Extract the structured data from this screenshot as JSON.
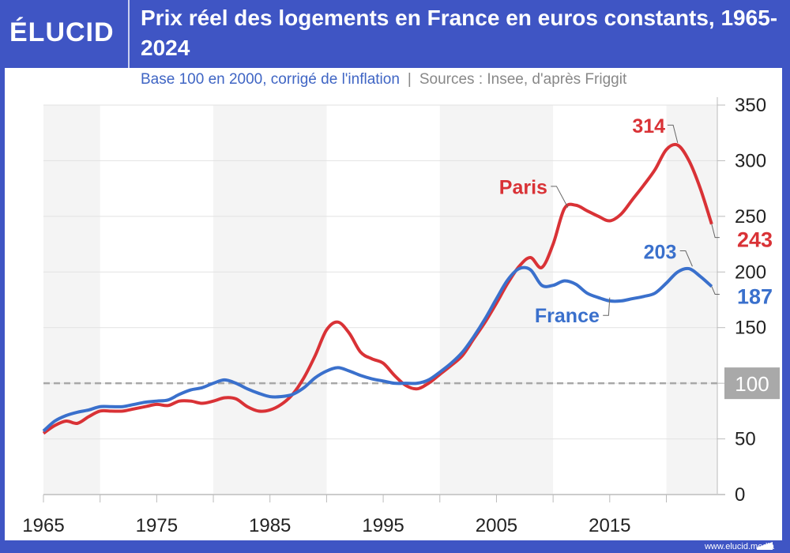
{
  "header": {
    "logo": "ÉLUCID",
    "title": "Prix réel des logements en France en euros constants, 1965-2024",
    "subtitle": "Base 100 en 2000, corrigé de l'inflation",
    "separator": "|",
    "sources": "Sources : Insee, d'après Friggit"
  },
  "footer": {
    "url": "www.elucid.media"
  },
  "colors": {
    "brand": "#3f55c4",
    "paris": "#d93236",
    "france": "#3a70cc",
    "baseline": "#a8a8a8"
  },
  "chart_data": {
    "type": "line",
    "title": "Prix réel des logements en France en euros constants, 1965-2024",
    "xlim": [
      1965,
      2024.5
    ],
    "ylim": [
      0,
      350
    ],
    "x_ticks": [
      1965,
      1975,
      1985,
      1995,
      2005,
      2015
    ],
    "y_ticks": [
      0,
      50,
      100,
      150,
      200,
      250,
      300,
      350
    ],
    "y_axis_side": "right",
    "grid": true,
    "shaded_decades": [
      [
        1965,
        1970
      ],
      [
        1980,
        1990
      ],
      [
        2000,
        2010
      ],
      [
        2020,
        2024.5
      ]
    ],
    "baseline": {
      "value": 100,
      "label": "100"
    },
    "x": [
      1965,
      1966,
      1967,
      1968,
      1969,
      1970,
      1971,
      1972,
      1973,
      1974,
      1975,
      1976,
      1977,
      1978,
      1979,
      1980,
      1981,
      1982,
      1983,
      1984,
      1985,
      1986,
      1987,
      1988,
      1989,
      1990,
      1991,
      1992,
      1993,
      1994,
      1995,
      1996,
      1997,
      1998,
      1999,
      2000,
      2001,
      2002,
      2003,
      2004,
      2005,
      2006,
      2007,
      2008,
      2009,
      2010,
      2011,
      2012,
      2013,
      2014,
      2015,
      2016,
      2017,
      2018,
      2019,
      2020,
      2021,
      2022,
      2023,
      2024
    ],
    "series": [
      {
        "name": "Paris",
        "color": "#d93236",
        "values": [
          55,
          62,
          66,
          64,
          70,
          75,
          75,
          75,
          77,
          79,
          81,
          80,
          84,
          84,
          82,
          84,
          87,
          86,
          79,
          75,
          76,
          81,
          90,
          105,
          125,
          148,
          155,
          145,
          128,
          122,
          118,
          107,
          98,
          95,
          100,
          108,
          116,
          125,
          140,
          155,
          172,
          190,
          205,
          213,
          204,
          225,
          257,
          260,
          255,
          250,
          246,
          252,
          265,
          278,
          292,
          310,
          314,
          300,
          275,
          243
        ],
        "annotations": [
          {
            "label": "314",
            "year": 2021,
            "value": 314
          },
          {
            "label": "243",
            "year": 2024,
            "value": 243
          }
        ]
      },
      {
        "name": "France",
        "color": "#3a70cc",
        "values": [
          57,
          66,
          71,
          74,
          76,
          79,
          79,
          79,
          81,
          83,
          84,
          85,
          90,
          94,
          96,
          100,
          103,
          100,
          95,
          91,
          88,
          88,
          90,
          96,
          105,
          111,
          114,
          111,
          107,
          104,
          102,
          100,
          100,
          100,
          103,
          110,
          118,
          128,
          142,
          158,
          176,
          193,
          203,
          202,
          188,
          188,
          192,
          189,
          181,
          177,
          174,
          174,
          176,
          178,
          181,
          190,
          200,
          203,
          196,
          187
        ],
        "annotations": [
          {
            "label": "203",
            "year": 2022,
            "value": 203
          },
          {
            "label": "187",
            "year": 2024,
            "value": 187
          }
        ]
      }
    ]
  }
}
